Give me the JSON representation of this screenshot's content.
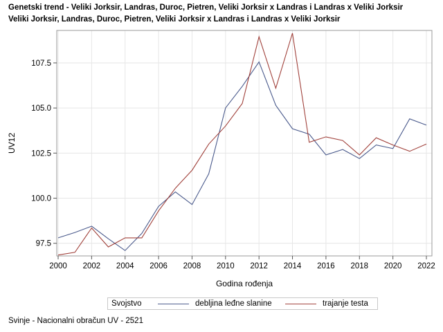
{
  "titles": {
    "line1": "Genetski trend - Veliki Jorksir, Landras, Duroc, Pietren, Veliki Jorksir x Landras i Landras x Veliki Jorksir",
    "line2": "Veliki Jorksir, Landras, Duroc, Pietren, Veliki Jorksir x Landras i Landras x Veliki Jorksir"
  },
  "legend": {
    "title": "Svojstvo"
  },
  "footnote": "Svinje - Nacionalni obračun UV - 2521",
  "chart_data": {
    "type": "line",
    "title": "Genetski trend - Veliki Jorksir, Landras, Duroc, Pietren, Veliki Jorksir x Landras i Landras x Veliki Jorksir",
    "subtitle": "Veliki Jorksir, Landras, Duroc, Pietren, Veliki Jorksir x Landras i Landras x Veliki Jorksir",
    "xlabel": "Godina rođenja",
    "ylabel": "UV12",
    "x": [
      2000,
      2001,
      2002,
      2003,
      2004,
      2005,
      2006,
      2007,
      2008,
      2009,
      2010,
      2011,
      2012,
      2013,
      2014,
      2015,
      2016,
      2017,
      2018,
      2019,
      2020,
      2021,
      2022
    ],
    "xticks": [
      2000,
      2002,
      2004,
      2006,
      2008,
      2010,
      2012,
      2014,
      2016,
      2018,
      2020,
      2022
    ],
    "yticks": [
      97.5,
      100.0,
      102.5,
      105.0,
      107.5
    ],
    "ytick_labels": [
      "97.5",
      "100.0",
      "102.5",
      "105.0",
      "107.5"
    ],
    "xlim": [
      2000,
      2022
    ],
    "ylim": [
      96.8,
      109.3
    ],
    "grid": true,
    "legend_position": "bottom",
    "series": [
      {
        "name": "debljina leđne slanine",
        "color": "#4a5a8c",
        "values": [
          97.8,
          98.1,
          98.45,
          97.75,
          97.1,
          98.05,
          99.55,
          100.35,
          99.65,
          101.35,
          105.0,
          106.2,
          107.55,
          105.15,
          103.85,
          103.55,
          102.4,
          102.7,
          102.2,
          102.95,
          102.75,
          104.4,
          104.05
        ]
      },
      {
        "name": "trajanje testa",
        "color": "#a0403a",
        "values": [
          96.85,
          97.0,
          98.35,
          97.3,
          97.8,
          97.8,
          99.3,
          100.55,
          101.55,
          103.0,
          104.0,
          105.25,
          108.95,
          106.1,
          109.15,
          103.1,
          103.4,
          103.2,
          102.4,
          103.35,
          102.95,
          102.6,
          103.0
        ]
      }
    ]
  }
}
